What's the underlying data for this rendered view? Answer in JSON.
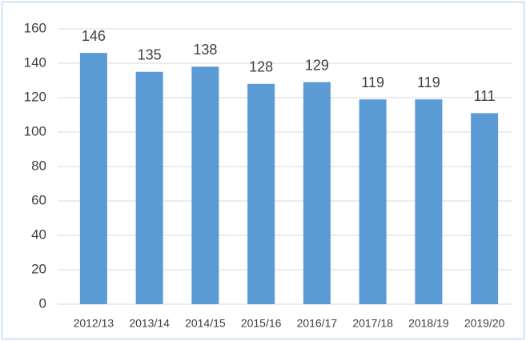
{
  "chart_data": {
    "type": "bar",
    "categories": [
      "2012/13",
      "2013/14",
      "2014/15",
      "2015/16",
      "2016/17",
      "2017/18",
      "2018/19",
      "2019/20"
    ],
    "values": [
      146,
      135,
      138,
      128,
      129,
      119,
      119,
      111
    ],
    "color": "#5b9bd5",
    "ylim": [
      0,
      160
    ],
    "yticks": [
      0,
      20,
      40,
      60,
      80,
      100,
      120,
      140,
      160
    ],
    "grid": true
  }
}
